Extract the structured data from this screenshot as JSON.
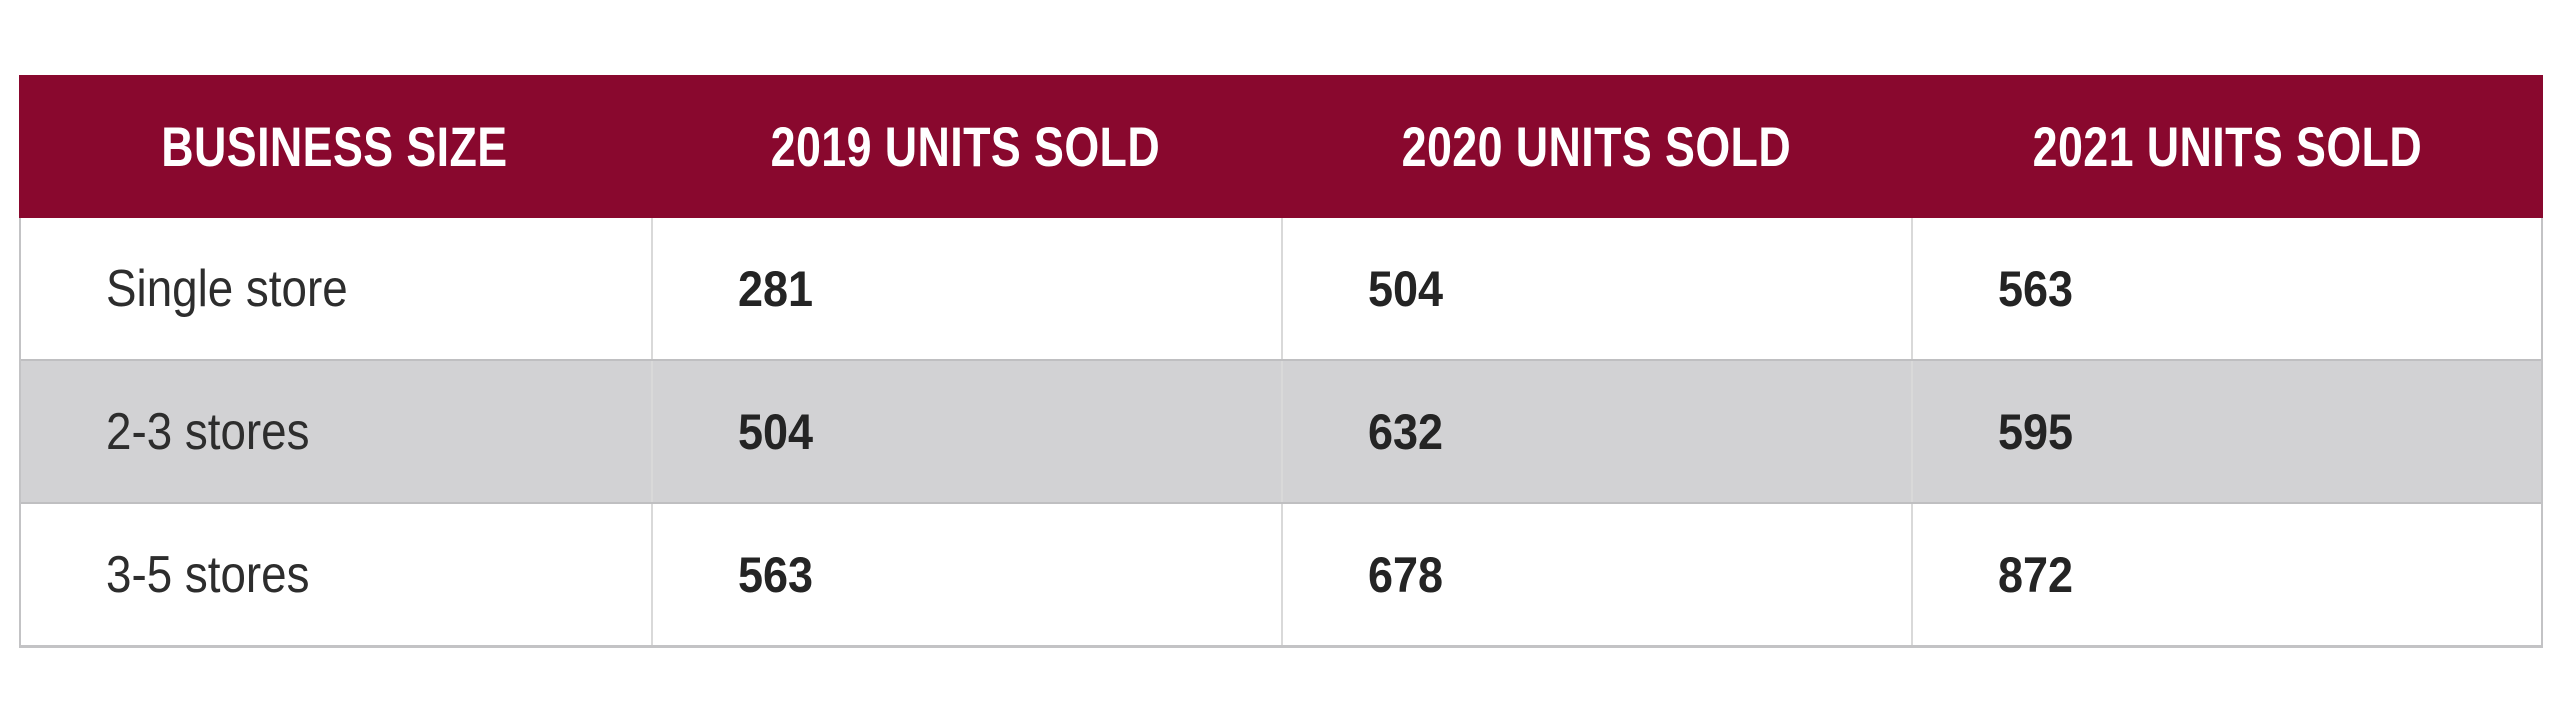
{
  "chart_data": {
    "type": "table",
    "title": "",
    "columns": [
      "BUSINESS SIZE",
      "2019 UNITS SOLD",
      "2020 UNITS SOLD",
      "2021 UNITS SOLD"
    ],
    "rows": [
      [
        "Single store",
        281,
        504,
        563
      ],
      [
        "2-3 stores",
        504,
        632,
        595
      ],
      [
        "3-5 stores",
        563,
        678,
        872
      ]
    ]
  },
  "colors": {
    "header_bg": "#89082e",
    "header_text": "#ffffff",
    "alt_row_bg": "#d2d2d4",
    "body_text": "#2d2d2d",
    "border": "#c3c3c5"
  }
}
